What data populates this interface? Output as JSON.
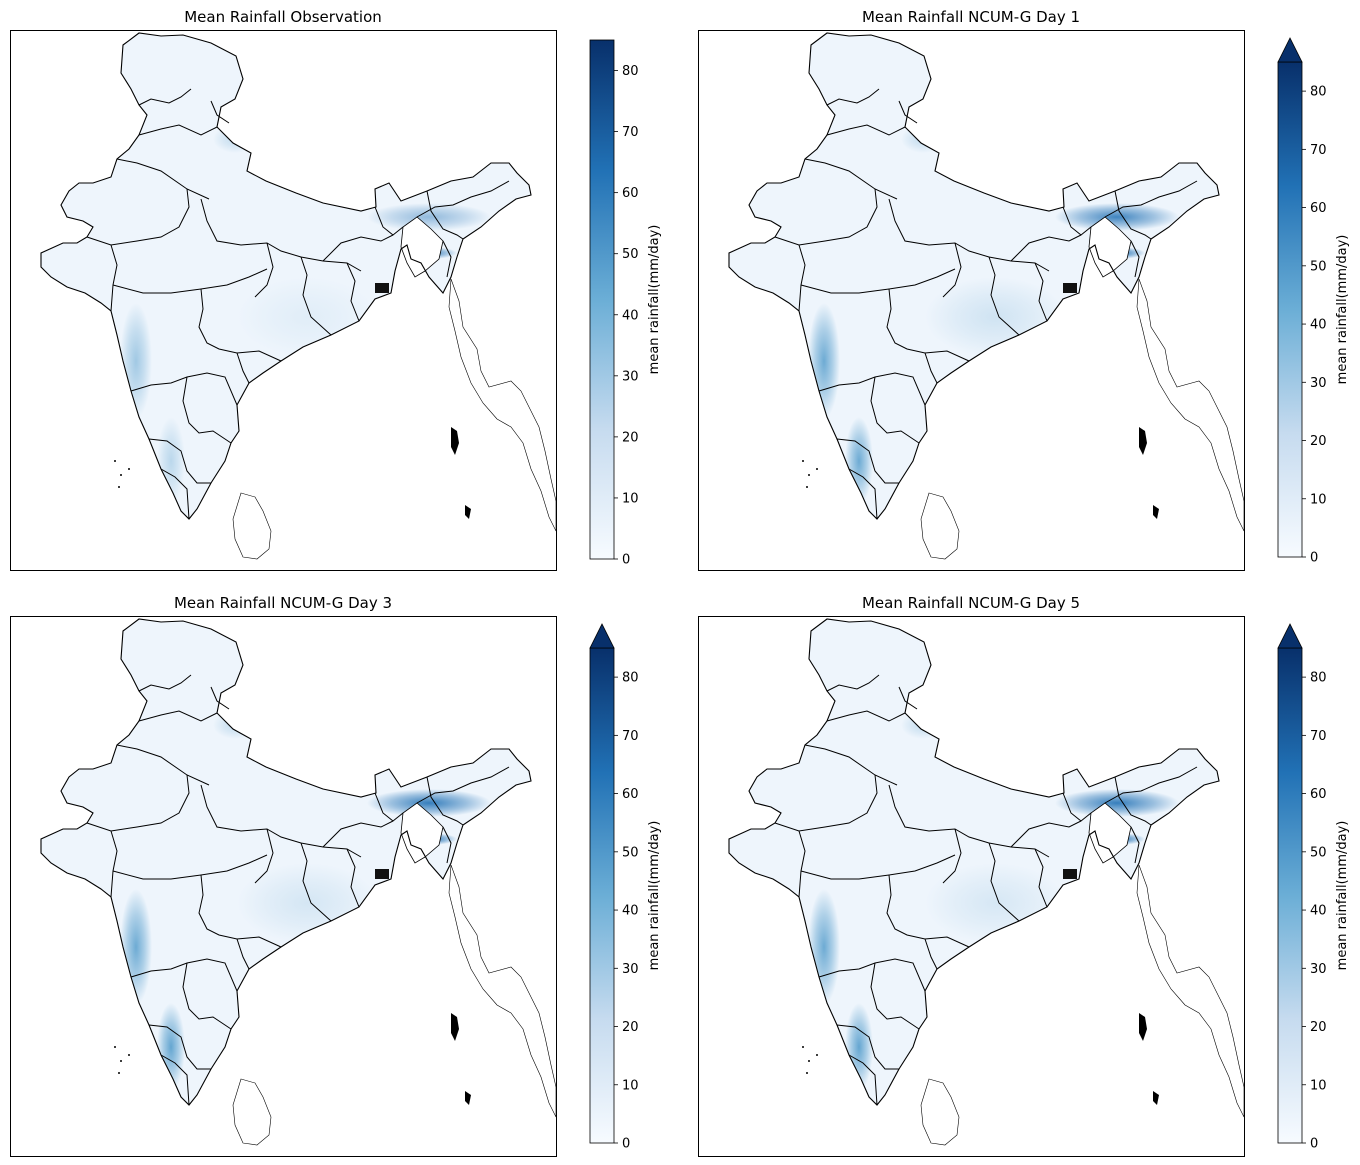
{
  "figure": {
    "panels": [
      {
        "id": "obs",
        "title": "Mean Rainfall Observation",
        "extend": "neither"
      },
      {
        "id": "day1",
        "title": "Mean Rainfall NCUM-G Day 1",
        "extend": "max"
      },
      {
        "id": "day3",
        "title": "Mean Rainfall NCUM-G Day 3",
        "extend": "max"
      },
      {
        "id": "day5",
        "title": "Mean Rainfall NCUM-G Day 5",
        "extend": "max"
      }
    ],
    "colorbar": {
      "label": "mean rainfall(mm/day)",
      "ticks": [
        "0",
        "10",
        "20",
        "30",
        "40",
        "50",
        "60",
        "70",
        "80"
      ],
      "range": [
        0,
        85
      ],
      "colormap": "Blues",
      "low_color": "#f7fbff",
      "high_color": "#08306b"
    },
    "colors": {
      "land_light": "#eef5fc",
      "coast_heavy": "#4292c6",
      "northeast_heavy": "#2171b5",
      "boundary": "#000000"
    }
  }
}
